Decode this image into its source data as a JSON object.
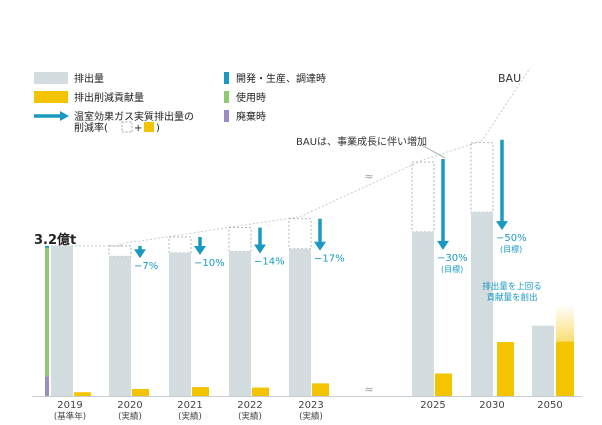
{
  "chart_data": {
    "type": "bar",
    "categories": [
      "2019",
      "2020",
      "2021",
      "2022",
      "2023",
      "2025",
      "2030",
      "2050"
    ],
    "category_sublabels": [
      "(基準年)",
      "(実績)",
      "(実績)",
      "(実績)",
      "(実績)",
      "",
      "",
      ""
    ],
    "ylim": [
      0,
      5.2
    ],
    "series": [
      {
        "name": "排出量",
        "color": "#d3dcdf",
        "values": [
          3.2,
          2.98,
          3.05,
          3.08,
          3.14,
          3.5,
          3.92,
          1.5
        ]
      },
      {
        "name": "排出削減貢献量",
        "color": "#f5c400",
        "values": [
          0.08,
          0.15,
          0.19,
          0.18,
          0.27,
          0.48,
          1.15,
          1.16
        ]
      }
    ],
    "bau": {
      "label": "BAU",
      "dashed_box_tops": [
        null,
        3.2,
        3.39,
        3.59,
        3.78,
        4.99,
        5.4,
        null
      ]
    },
    "stack_2019": [
      {
        "name": "開発・生産、調達時",
        "color": "#1a9ac0",
        "value": 0.04
      },
      {
        "name": "使用時",
        "color": "#8ec86f",
        "value": 2.74
      },
      {
        "name": "廃棄時",
        "color": "#9b8cc4",
        "value": 0.42
      }
    ],
    "reductions": [
      "",
      "−7%",
      "−10%",
      "−14%",
      "−17%",
      "−30%",
      "−50%",
      ""
    ],
    "reduction_notes": [
      "",
      "",
      "",
      "",
      "",
      "(目標)",
      "(目標)",
      ""
    ],
    "start_label": "3.2億t",
    "annotations": {
      "bau_note": "BAUは、事業成長に伴い増加",
      "net_note_line1": "排出量を上回る",
      "net_note_line2": "貢献量を創出"
    },
    "legend": [
      {
        "label": "排出量",
        "swatch": "#d3dcdf",
        "kind": "box"
      },
      {
        "label": "開発・生産、調達時",
        "swatch": "#1a9ac0",
        "kind": "bar"
      },
      {
        "label": "排出削減貢献量",
        "swatch": "#f5c400",
        "kind": "box"
      },
      {
        "label": "使用時",
        "swatch": "#8ec86f",
        "kind": "bar"
      },
      {
        "label": "温室効果ガス実質排出量の",
        "label2": "削減率(",
        "label3": "+",
        "label4": ")",
        "swatch": "#1a9ac0",
        "kind": "arrow"
      },
      {
        "label": "廃棄時",
        "swatch": "#9b8cc4",
        "kind": "bar"
      }
    ]
  }
}
